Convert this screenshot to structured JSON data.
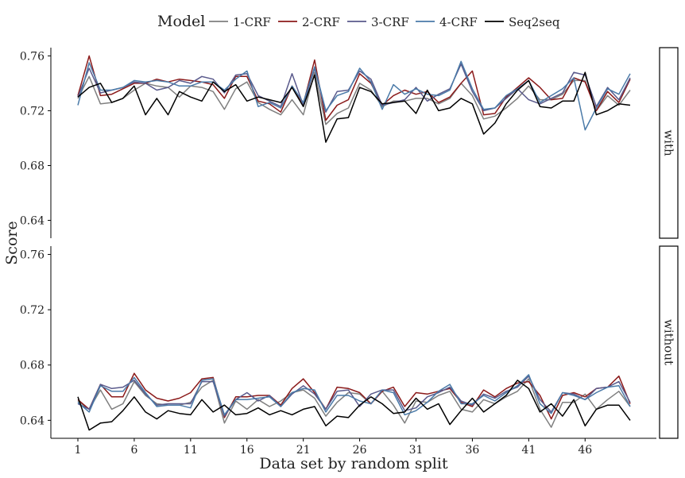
{
  "chart_data": {
    "type": "line",
    "legend": {
      "title": "Model",
      "placement": "top"
    },
    "xlabel": "Data set by random split",
    "ylabel": "Score",
    "xlim": [
      1,
      50
    ],
    "ylim": [
      0.627,
      0.766
    ],
    "x_ticks": [
      1,
      6,
      11,
      16,
      21,
      26,
      31,
      36,
      41,
      46
    ],
    "y_ticks": [
      "0.64",
      "0.68",
      "0.72",
      "0.76"
    ],
    "series_meta": [
      {
        "name": "1-CRF",
        "color": "#7f7f7f"
      },
      {
        "name": "2-CRF",
        "color": "#8b1a1a"
      },
      {
        "name": "3-CRF",
        "color": "#5a5a8c"
      },
      {
        "name": "4-CRF",
        "color": "#4a7aa8"
      },
      {
        "name": "Seq2seq",
        "color": "#000000"
      }
    ],
    "panels": [
      {
        "label": "with",
        "series": [
          {
            "name": "1-CRF",
            "values": [
              0.729,
              0.745,
              0.725,
              0.726,
              0.729,
              0.735,
              0.74,
              0.738,
              0.737,
              0.73,
              0.738,
              0.737,
              0.734,
              0.721,
              0.736,
              0.741,
              0.726,
              0.721,
              0.717,
              0.728,
              0.717,
              0.748,
              0.71,
              0.718,
              0.722,
              0.74,
              0.735,
              0.723,
              0.727,
              0.727,
              0.729,
              0.729,
              0.725,
              0.729,
              0.74,
              0.731,
              0.714,
              0.716,
              0.722,
              0.729,
              0.738,
              0.728,
              0.728,
              0.732,
              0.742,
              0.742,
              0.72,
              0.731,
              0.724,
              0.735
            ]
          },
          {
            "name": "2-CRF",
            "values": [
              0.731,
              0.76,
              0.731,
              0.732,
              0.736,
              0.74,
              0.74,
              0.743,
              0.741,
              0.743,
              0.742,
              0.741,
              0.739,
              0.729,
              0.745,
              0.745,
              0.727,
              0.725,
              0.719,
              0.738,
              0.725,
              0.757,
              0.713,
              0.724,
              0.728,
              0.747,
              0.74,
              0.724,
              0.731,
              0.735,
              0.732,
              0.734,
              0.726,
              0.73,
              0.74,
              0.749,
              0.717,
              0.718,
              0.73,
              0.737,
              0.744,
              0.737,
              0.728,
              0.729,
              0.744,
              0.741,
              0.72,
              0.734,
              0.726,
              0.743
            ]
          },
          {
            "name": "3-CRF",
            "values": [
              0.73,
              0.751,
              0.733,
              0.735,
              0.737,
              0.741,
              0.74,
              0.735,
              0.737,
              0.742,
              0.74,
              0.745,
              0.743,
              0.733,
              0.746,
              0.747,
              0.731,
              0.727,
              0.723,
              0.747,
              0.724,
              0.751,
              0.719,
              0.734,
              0.735,
              0.749,
              0.743,
              0.724,
              0.726,
              0.728,
              0.737,
              0.727,
              0.732,
              0.736,
              0.754,
              0.734,
              0.72,
              0.722,
              0.729,
              0.736,
              0.728,
              0.725,
              0.729,
              0.733,
              0.748,
              0.746,
              0.723,
              0.737,
              0.728,
              0.744
            ]
          },
          {
            "name": "4-CRF",
            "values": [
              0.724,
              0.755,
              0.735,
              0.735,
              0.737,
              0.742,
              0.741,
              0.742,
              0.741,
              0.738,
              0.738,
              0.741,
              0.741,
              0.735,
              0.743,
              0.749,
              0.723,
              0.726,
              0.722,
              0.738,
              0.726,
              0.752,
              0.72,
              0.731,
              0.734,
              0.751,
              0.741,
              0.721,
              0.739,
              0.732,
              0.736,
              0.732,
              0.731,
              0.735,
              0.756,
              0.736,
              0.721,
              0.722,
              0.731,
              0.736,
              0.742,
              0.726,
              0.731,
              0.736,
              0.744,
              0.706,
              0.722,
              0.736,
              0.732,
              0.747
            ]
          },
          {
            "name": "Seq2seq",
            "values": [
              0.73,
              0.737,
              0.74,
              0.726,
              0.729,
              0.738,
              0.717,
              0.729,
              0.717,
              0.734,
              0.73,
              0.727,
              0.741,
              0.734,
              0.739,
              0.727,
              0.73,
              0.728,
              0.726,
              0.737,
              0.723,
              0.746,
              0.697,
              0.714,
              0.715,
              0.737,
              0.734,
              0.725,
              0.726,
              0.727,
              0.718,
              0.735,
              0.72,
              0.722,
              0.729,
              0.725,
              0.703,
              0.711,
              0.725,
              0.735,
              0.742,
              0.723,
              0.722,
              0.727,
              0.727,
              0.748,
              0.717,
              0.72,
              0.725,
              0.724
            ]
          }
        ]
      },
      {
        "label": "without",
        "series": [
          {
            "name": "1-CRF",
            "values": [
              0.654,
              0.648,
              0.662,
              0.648,
              0.652,
              0.668,
              0.658,
              0.652,
              0.651,
              0.651,
              0.653,
              0.664,
              0.669,
              0.638,
              0.654,
              0.648,
              0.655,
              0.65,
              0.654,
              0.66,
              0.662,
              0.656,
              0.643,
              0.653,
              0.66,
              0.659,
              0.652,
              0.661,
              0.651,
              0.638,
              0.654,
              0.653,
              0.658,
              0.661,
              0.648,
              0.646,
              0.655,
              0.652,
              0.657,
              0.661,
              0.67,
              0.648,
              0.635,
              0.653,
              0.653,
              0.659,
              0.648,
              0.655,
              0.661,
              0.65
            ]
          },
          {
            "name": "2-CRF",
            "values": [
              0.655,
              0.648,
              0.666,
              0.657,
              0.657,
              0.674,
              0.662,
              0.656,
              0.654,
              0.656,
              0.66,
              0.67,
              0.671,
              0.642,
              0.657,
              0.657,
              0.658,
              0.658,
              0.651,
              0.663,
              0.67,
              0.66,
              0.648,
              0.664,
              0.663,
              0.66,
              0.652,
              0.661,
              0.664,
              0.65,
              0.66,
              0.659,
              0.661,
              0.663,
              0.653,
              0.65,
              0.662,
              0.657,
              0.663,
              0.667,
              0.668,
              0.658,
              0.641,
              0.658,
              0.66,
              0.657,
              0.663,
              0.664,
              0.672,
              0.652
            ]
          },
          {
            "name": "3-CRF",
            "values": [
              0.652,
              0.648,
              0.666,
              0.663,
              0.664,
              0.669,
              0.659,
              0.651,
              0.652,
              0.652,
              0.652,
              0.668,
              0.668,
              0.643,
              0.655,
              0.66,
              0.654,
              0.658,
              0.65,
              0.659,
              0.665,
              0.659,
              0.648,
              0.661,
              0.662,
              0.65,
              0.659,
              0.662,
              0.662,
              0.647,
              0.649,
              0.657,
              0.66,
              0.664,
              0.654,
              0.651,
              0.659,
              0.656,
              0.661,
              0.664,
              0.672,
              0.655,
              0.646,
              0.66,
              0.659,
              0.655,
              0.663,
              0.664,
              0.668,
              0.653
            ]
          },
          {
            "name": "4-CRF",
            "values": [
              0.653,
              0.646,
              0.665,
              0.661,
              0.661,
              0.671,
              0.66,
              0.65,
              0.651,
              0.651,
              0.649,
              0.669,
              0.67,
              0.644,
              0.655,
              0.655,
              0.656,
              0.657,
              0.65,
              0.66,
              0.663,
              0.662,
              0.646,
              0.658,
              0.658,
              0.654,
              0.652,
              0.662,
              0.66,
              0.644,
              0.647,
              0.653,
              0.661,
              0.666,
              0.652,
              0.652,
              0.658,
              0.654,
              0.66,
              0.665,
              0.673,
              0.652,
              0.645,
              0.66,
              0.658,
              0.655,
              0.66,
              0.664,
              0.665,
              0.65
            ]
          },
          {
            "name": "Seq2seq",
            "values": [
              0.657,
              0.633,
              0.638,
              0.639,
              0.647,
              0.657,
              0.646,
              0.641,
              0.647,
              0.645,
              0.644,
              0.655,
              0.646,
              0.651,
              0.644,
              0.645,
              0.649,
              0.644,
              0.647,
              0.644,
              0.648,
              0.65,
              0.636,
              0.643,
              0.642,
              0.651,
              0.657,
              0.652,
              0.645,
              0.646,
              0.656,
              0.648,
              0.652,
              0.637,
              0.647,
              0.656,
              0.646,
              0.652,
              0.658,
              0.669,
              0.663,
              0.646,
              0.652,
              0.643,
              0.655,
              0.636,
              0.648,
              0.651,
              0.651,
              0.64
            ]
          }
        ]
      }
    ]
  }
}
